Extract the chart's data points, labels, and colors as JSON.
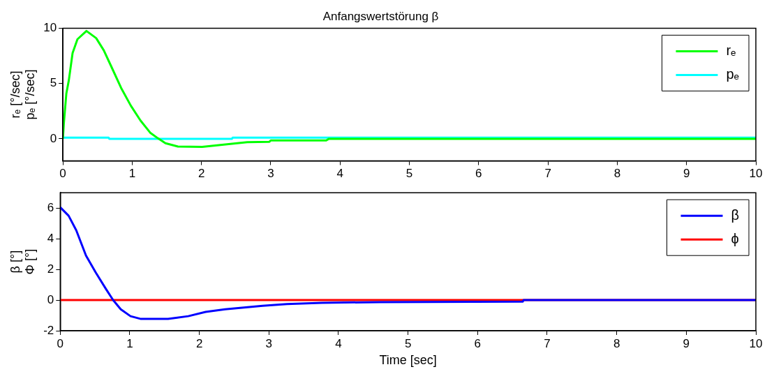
{
  "chart_data": [
    {
      "type": "line",
      "title": "Anfangswertstörung β",
      "ylabel": "rₑ [°/sec]\npₑ [°/sec]",
      "xlim": [
        0,
        10
      ],
      "xticks": [
        0,
        1,
        2,
        3,
        4,
        5,
        6,
        7,
        8,
        9,
        10
      ],
      "ylim": [
        -2,
        10
      ],
      "yticks": [
        0,
        5,
        10
      ],
      "grid": false,
      "legend": "top right",
      "series": [
        {
          "name": "rₑ",
          "color": "#00ff00",
          "x": [
            0,
            0.014,
            0.05,
            0.086,
            0.14,
            0.21,
            0.34,
            0.48,
            0.59,
            0.69,
            0.84,
            0.98,
            1.12,
            1.26,
            1.37,
            1.48,
            1.66,
            2.01,
            2.37,
            2.66,
            2.98,
            3.0,
            3.8,
            3.84,
            10
          ],
          "values": [
            0,
            1.4,
            4.1,
            5.3,
            7.75,
            9.0,
            9.75,
            9.1,
            8.0,
            6.65,
            4.6,
            3.0,
            1.65,
            0.55,
            0.05,
            -0.4,
            -0.7,
            -0.73,
            -0.5,
            -0.3,
            -0.27,
            -0.15,
            -0.15,
            0,
            0
          ]
        },
        {
          "name": "pₑ",
          "color": "#00ffff",
          "x": [
            0,
            0.66,
            0.67,
            2.44,
            2.45,
            10
          ],
          "values": [
            0.1,
            0.1,
            0,
            0,
            0.1,
            0.1
          ]
        }
      ]
    },
    {
      "type": "line",
      "xlabel": "Time [sec]",
      "ylabel": "β [°]\nΦ [°]",
      "xlim": [
        0,
        10
      ],
      "xticks": [
        0,
        1,
        2,
        3,
        4,
        5,
        6,
        7,
        8,
        9,
        10
      ],
      "ylim": [
        -2,
        7
      ],
      "yticks": [
        -2,
        0,
        2,
        4,
        6
      ],
      "grid": false,
      "legend": "top right",
      "series": [
        {
          "name": "β",
          "color": "#0000ff",
          "x": [
            0,
            0.12,
            0.23,
            0.37,
            0.51,
            0.66,
            0.76,
            0.87,
            1.01,
            1.16,
            1.55,
            1.84,
            2.09,
            2.37,
            2.91,
            3.26,
            3.76,
            4.59,
            6.65,
            6.66,
            10
          ],
          "values": [
            6.05,
            5.5,
            4.55,
            2.9,
            1.8,
            0.7,
            0,
            -0.6,
            -1.05,
            -1.23,
            -1.23,
            -1.05,
            -0.77,
            -0.6,
            -0.37,
            -0.26,
            -0.18,
            -0.13,
            -0.1,
            0,
            0
          ]
        },
        {
          "name": "ϕ",
          "color": "#ff0000",
          "x": [
            0,
            10
          ],
          "values": [
            0,
            0
          ]
        }
      ]
    }
  ]
}
